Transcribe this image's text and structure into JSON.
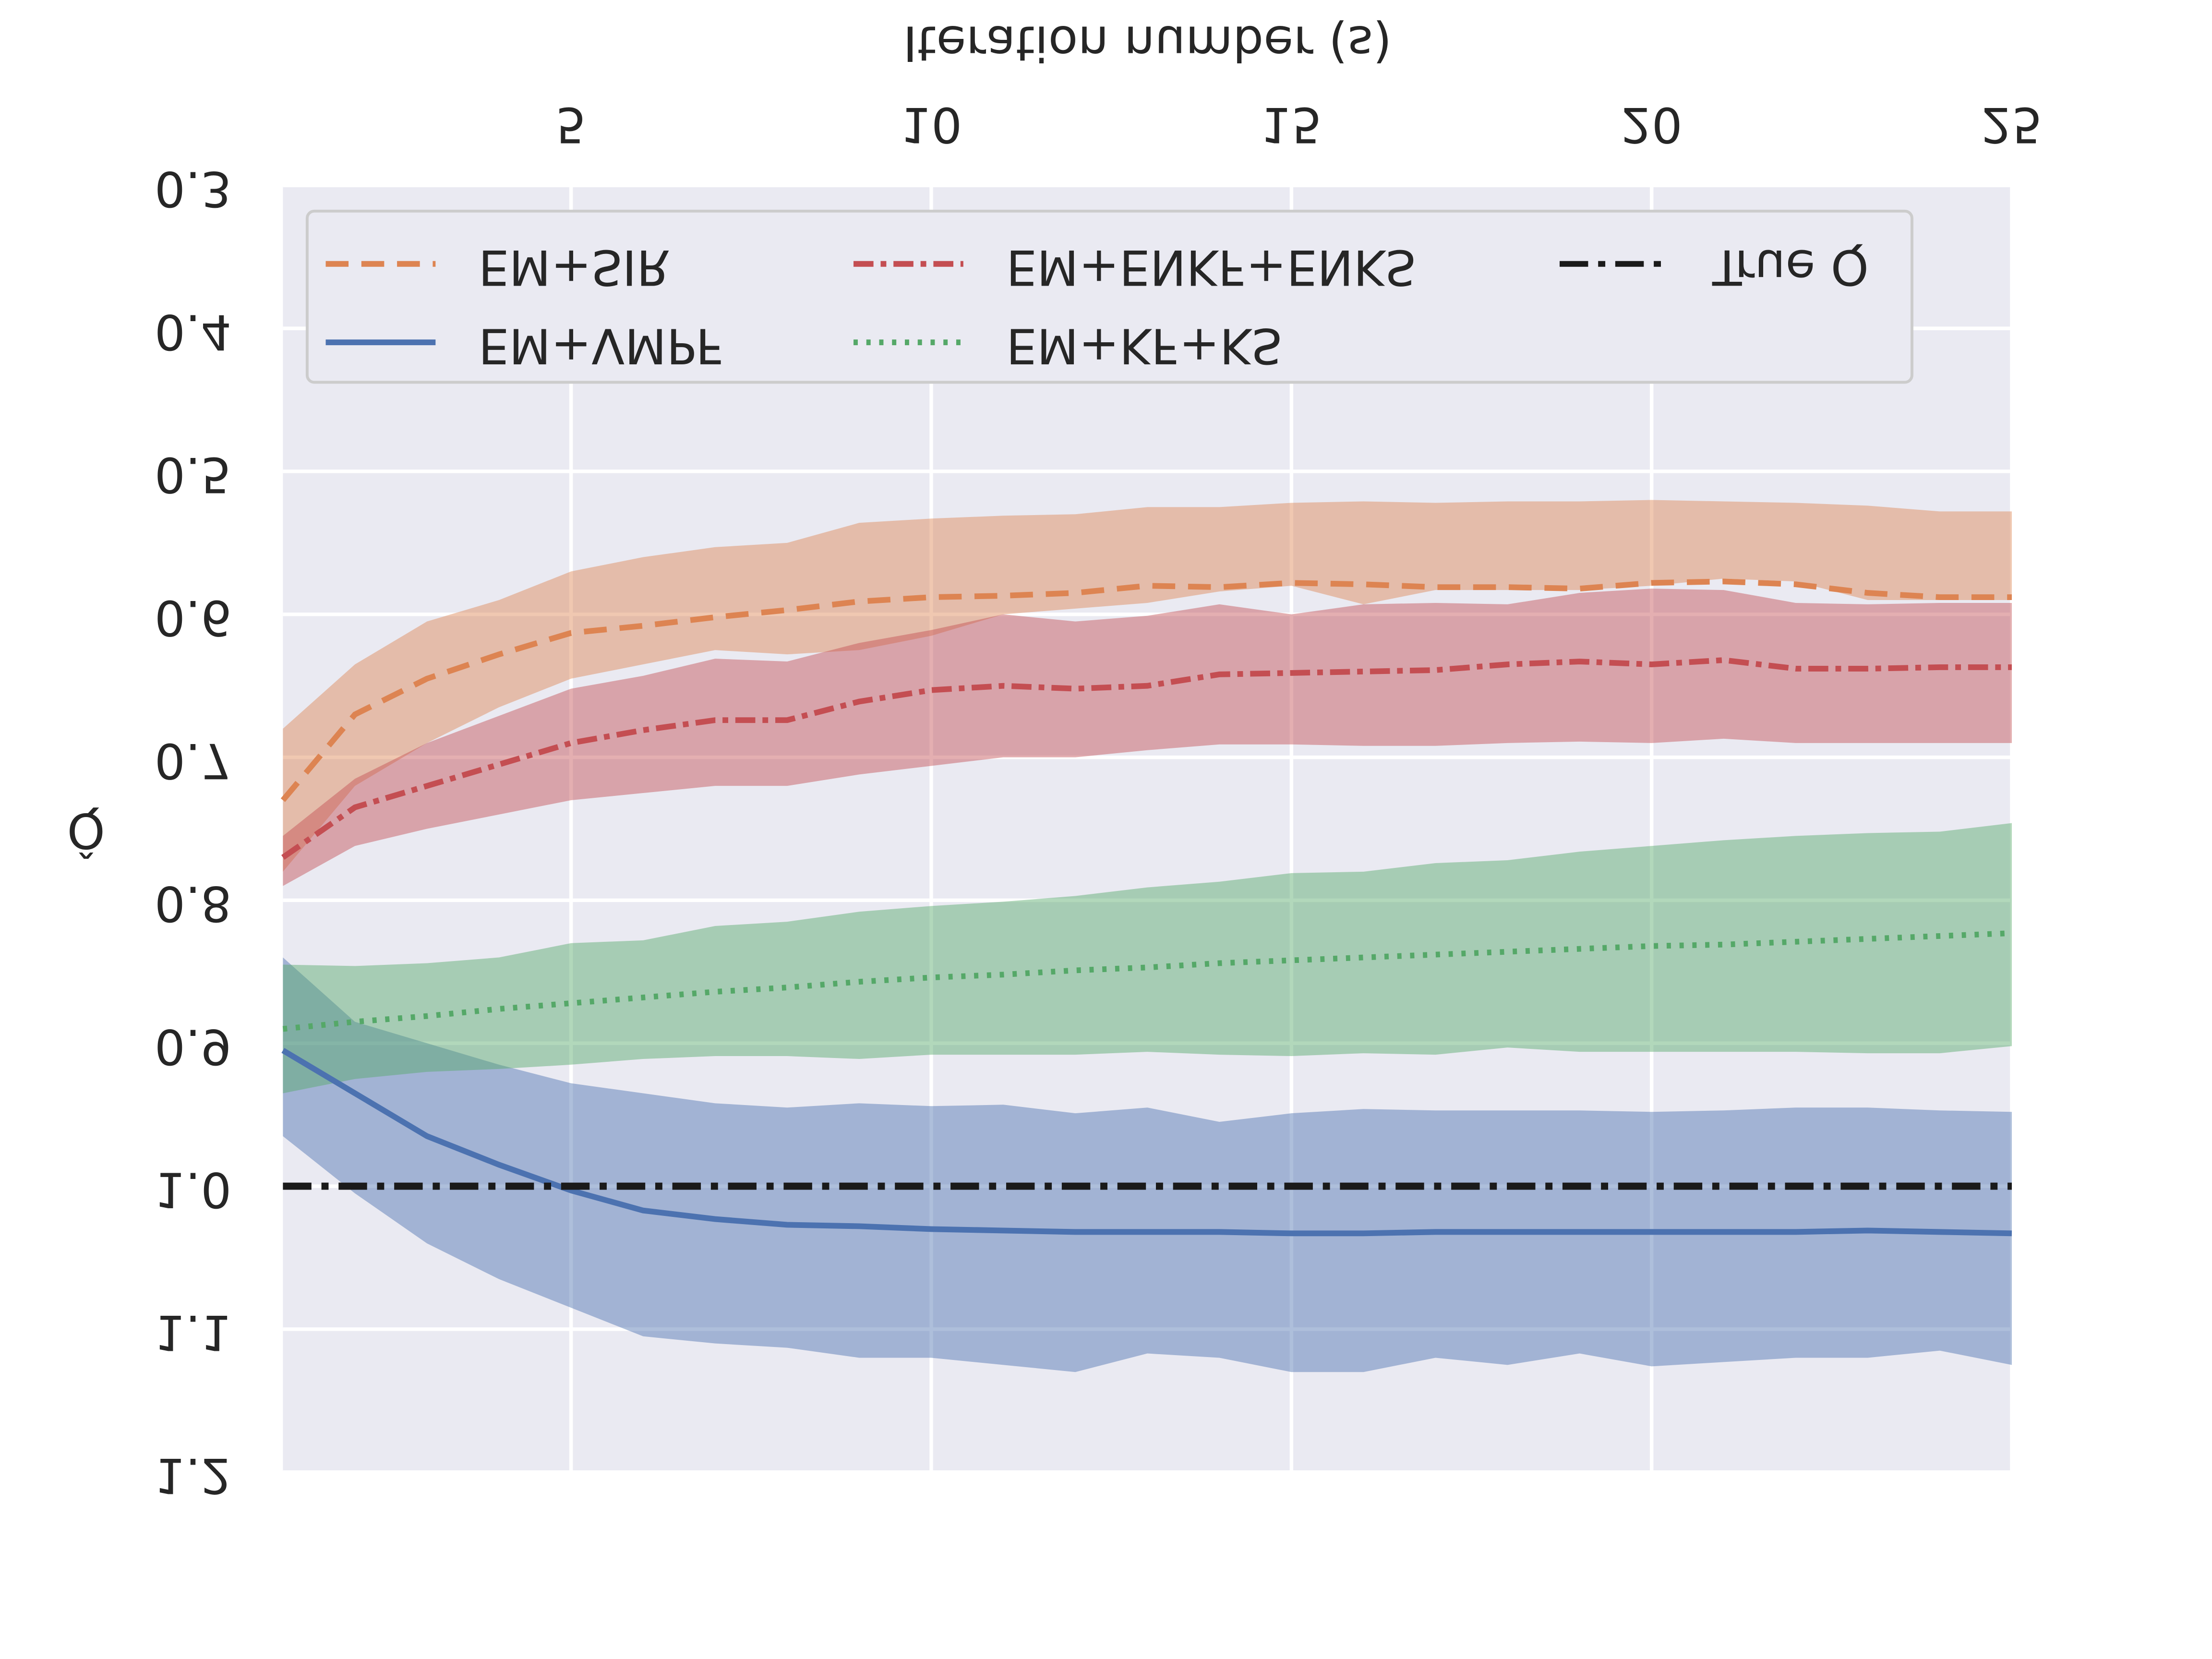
{
  "chart_data": {
    "type": "line",
    "xlabel": "Iteration number (s)",
    "ylabel": "Q̂",
    "xlim": [
      1,
      25
    ],
    "xticks": [
      5,
      10,
      15,
      20,
      25
    ],
    "ylim": [
      0.3,
      1.2
    ],
    "yticks": [
      0.3,
      0.4,
      0.5,
      0.6,
      0.7,
      0.8,
      0.9,
      {
        "value": 1,
        "label": "1.0"
      },
      1.1,
      1.2
    ],
    "inverted_y": true,
    "flipped_vertically": true,
    "grid": true,
    "legend": "upper",
    "x": [
      1,
      2,
      3,
      4,
      5,
      6,
      7,
      8,
      9,
      10,
      11,
      12,
      13,
      14,
      15,
      16,
      17,
      18,
      19,
      20,
      21,
      22,
      23,
      24,
      25
    ],
    "series": [
      {
        "name": "EM+SIR",
        "color": "#dd8452",
        "dash": "dashed",
        "values": [
          0.73,
          0.67,
          0.645,
          0.628,
          0.613,
          0.608,
          0.602,
          0.597,
          0.591,
          0.588,
          0.587,
          0.585,
          0.58,
          0.581,
          0.578,
          0.579,
          0.581,
          0.581,
          0.582,
          0.578,
          0.577,
          0.579,
          0.585,
          0.588,
          0.588
        ],
        "lower": [
          0.68,
          0.635,
          0.605,
          0.59,
          0.57,
          0.56,
          0.553,
          0.55,
          0.536,
          0.533,
          0.531,
          0.53,
          0.525,
          0.525,
          0.522,
          0.521,
          0.522,
          0.521,
          0.521,
          0.52,
          0.521,
          0.522,
          0.524,
          0.528,
          0.528
        ],
        "upper": [
          0.78,
          0.72,
          0.69,
          0.665,
          0.645,
          0.635,
          0.625,
          0.628,
          0.625,
          0.615,
          0.6,
          0.596,
          0.592,
          0.584,
          0.58,
          0.593,
          0.583,
          0.583,
          0.583,
          0.58,
          0.575,
          0.577,
          0.59,
          0.59,
          0.59
        ]
      },
      {
        "name": "EM+VMPF",
        "color": "#4c72b0",
        "dash": "solid",
        "values": [
          0.905,
          0.935,
          0.965,
          0.985,
          1.003,
          1.017,
          1.023,
          1.027,
          1.028,
          1.03,
          1.031,
          1.032,
          1.032,
          1.032,
          1.033,
          1.033,
          1.032,
          1.032,
          1.032,
          1.032,
          1.032,
          1.032,
          1.031,
          1.032,
          1.033
        ],
        "lower": [
          0.84,
          0.885,
          0.9,
          0.915,
          0.928,
          0.935,
          0.942,
          0.945,
          0.942,
          0.944,
          0.943,
          0.949,
          0.945,
          0.955,
          0.949,
          0.946,
          0.947,
          0.947,
          0.947,
          0.948,
          0.947,
          0.945,
          0.945,
          0.947,
          0.948
        ],
        "upper": [
          0.965,
          1.005,
          1.04,
          1.065,
          1.085,
          1.105,
          1.11,
          1.113,
          1.12,
          1.12,
          1.125,
          1.13,
          1.117,
          1.12,
          1.13,
          1.13,
          1.12,
          1.125,
          1.117,
          1.126,
          1.123,
          1.12,
          1.12,
          1.115,
          1.125
        ]
      },
      {
        "name": "EM+ENKF+ENKS",
        "color": "#c44e52",
        "dash": "dashdot",
        "values": [
          0.77,
          0.735,
          0.72,
          0.705,
          0.69,
          0.681,
          0.674,
          0.674,
          0.661,
          0.653,
          0.65,
          0.652,
          0.65,
          0.642,
          0.641,
          0.64,
          0.639,
          0.635,
          0.633,
          0.635,
          0.632,
          0.638,
          0.638,
          0.637,
          0.637
        ],
        "lower": [
          0.755,
          0.715,
          0.69,
          0.671,
          0.652,
          0.643,
          0.631,
          0.633,
          0.62,
          0.611,
          0.6,
          0.605,
          0.601,
          0.593,
          0.6,
          0.593,
          0.592,
          0.593,
          0.585,
          0.582,
          0.583,
          0.592,
          0.593,
          0.592,
          0.592
        ],
        "upper": [
          0.79,
          0.762,
          0.75,
          0.74,
          0.73,
          0.725,
          0.72,
          0.72,
          0.712,
          0.706,
          0.7,
          0.7,
          0.695,
          0.691,
          0.691,
          0.692,
          0.692,
          0.69,
          0.689,
          0.69,
          0.687,
          0.69,
          0.69,
          0.69,
          0.69
        ]
      },
      {
        "name": "EM+KF+KS",
        "color": "#55a868",
        "dash": "dotted",
        "values": [
          0.89,
          0.885,
          0.881,
          0.876,
          0.872,
          0.868,
          0.864,
          0.861,
          0.857,
          0.854,
          0.852,
          0.849,
          0.847,
          0.844,
          0.842,
          0.84,
          0.838,
          0.836,
          0.834,
          0.832,
          0.831,
          0.829,
          0.827,
          0.825,
          0.823
        ],
        "lower": [
          0.845,
          0.846,
          0.844,
          0.84,
          0.83,
          0.828,
          0.818,
          0.815,
          0.808,
          0.804,
          0.801,
          0.797,
          0.791,
          0.787,
          0.781,
          0.78,
          0.774,
          0.772,
          0.766,
          0.762,
          0.758,
          0.755,
          0.753,
          0.752,
          0.746
        ],
        "upper": [
          0.935,
          0.925,
          0.92,
          0.918,
          0.915,
          0.911,
          0.909,
          0.909,
          0.911,
          0.908,
          0.908,
          0.908,
          0.906,
          0.908,
          0.909,
          0.907,
          0.908,
          0.903,
          0.906,
          0.906,
          0.906,
          0.906,
          0.907,
          0.907,
          0.902
        ]
      }
    ],
    "reference": {
      "name": "True Q",
      "value": 1,
      "color": "#1a1a1a",
      "dash": "longdashdot"
    }
  }
}
